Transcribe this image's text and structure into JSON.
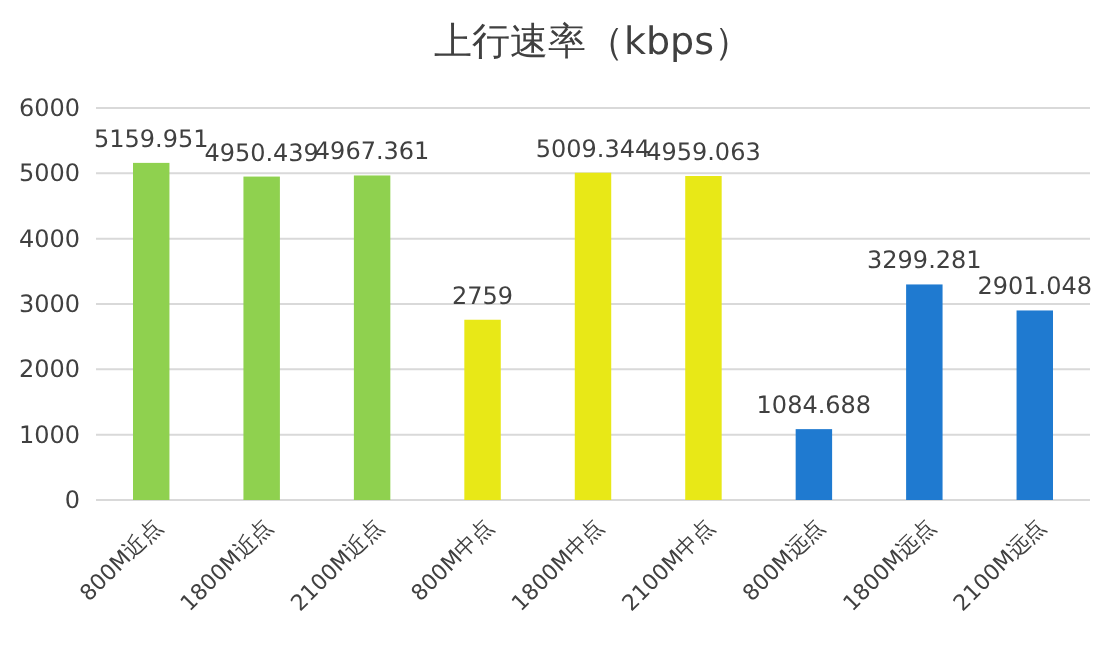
{
  "chart_data": {
    "type": "bar",
    "title": "上行速率（kbps）",
    "categories": [
      "800M近点",
      "1800M近点",
      "2100M近点",
      "800M中点",
      "1800M中点",
      "2100M中点",
      "800M远点",
      "1800M远点",
      "2100M远点"
    ],
    "values": [
      5159.951,
      4950.439,
      4967.361,
      2759,
      5009.344,
      4959.063,
      1084.688,
      3299.281,
      2901.048
    ],
    "colors": [
      "#8fd14f",
      "#8fd14f",
      "#8fd14f",
      "#e8e817",
      "#e8e817",
      "#e8e817",
      "#1f7ad0",
      "#1f7ad0",
      "#1f7ad0"
    ],
    "ylim": [
      0,
      6000
    ],
    "yticks": [
      0,
      1000,
      2000,
      3000,
      4000,
      5000,
      6000
    ],
    "grid": "y",
    "data_labels": true
  }
}
